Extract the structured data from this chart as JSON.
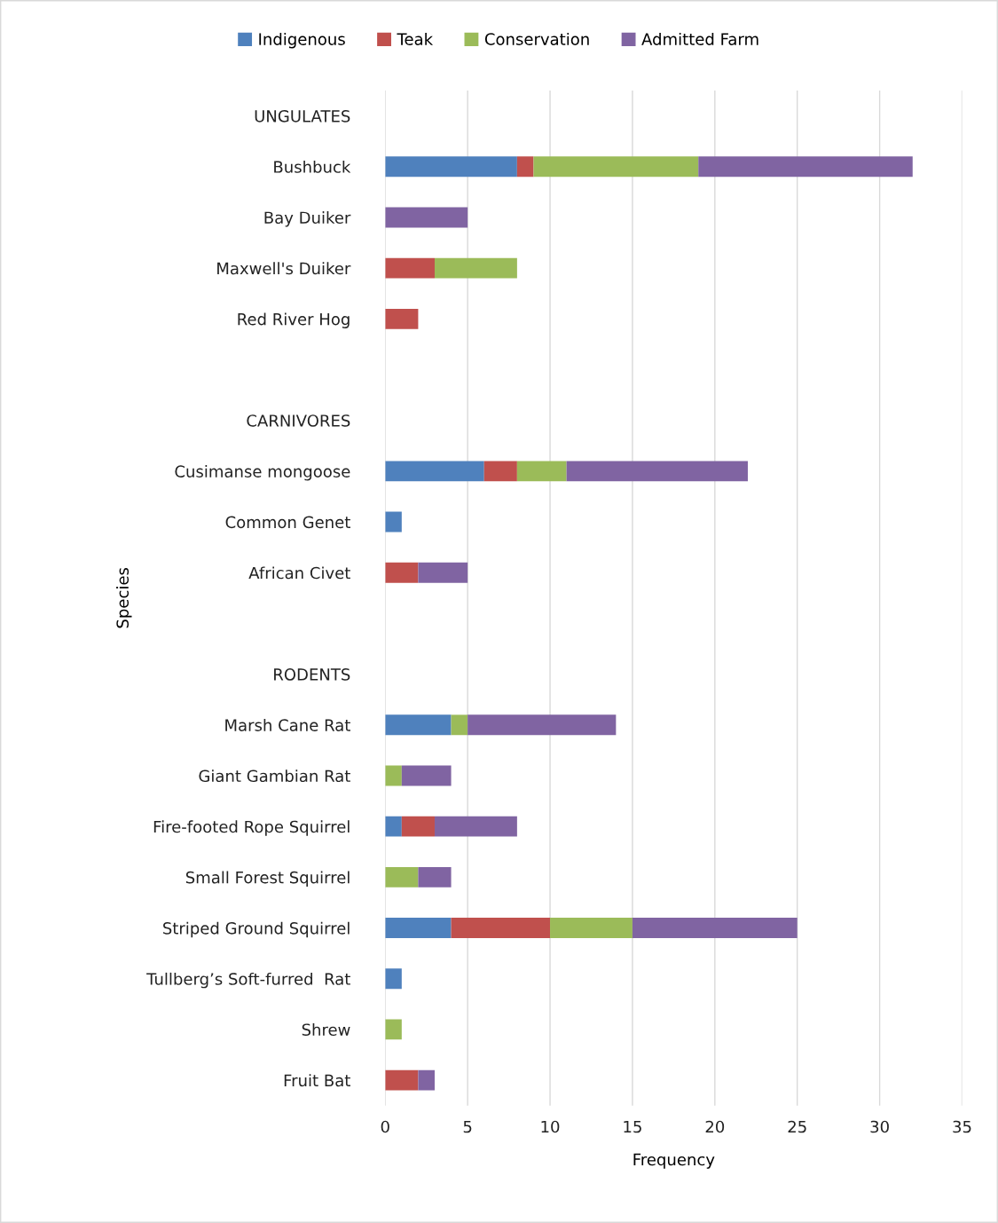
{
  "chart_data": {
    "type": "bar",
    "orientation": "horizontal",
    "stacked": true,
    "categories": [
      "UNGULATES",
      "Bushbuck",
      "Bay Duiker",
      "Maxwell's Duiker",
      "Red River Hog",
      null,
      "CARNIVORES",
      "Cusimanse mongoose",
      "Common Genet",
      "African Civet",
      null,
      "RODENTS",
      "Marsh Cane Rat",
      "Giant Gambian Rat",
      "Fire-footed Rope Squirrel",
      "Small Forest Squirrel",
      "Striped Ground Squirrel",
      "Tullberg’s Soft-furred  Rat",
      "Shrew",
      "Fruit Bat"
    ],
    "series": [
      {
        "name": "Indigenous",
        "color": "#4f81bd",
        "values": [
          null,
          8,
          0,
          0,
          0,
          null,
          null,
          6,
          1,
          0,
          null,
          null,
          4,
          0,
          1,
          0,
          4,
          1,
          0,
          0
        ]
      },
      {
        "name": "Teak",
        "color": "#c0504d",
        "values": [
          null,
          1,
          0,
          3,
          2,
          null,
          null,
          2,
          0,
          2,
          null,
          null,
          0,
          0,
          2,
          0,
          6,
          0,
          0,
          2
        ]
      },
      {
        "name": "Conservation",
        "color": "#9bbb59",
        "values": [
          null,
          10,
          0,
          5,
          0,
          null,
          null,
          3,
          0,
          0,
          null,
          null,
          1,
          1,
          0,
          2,
          5,
          0,
          1,
          0
        ]
      },
      {
        "name": "Admitted Farm",
        "color": "#8064a2",
        "values": [
          null,
          13,
          5,
          0,
          0,
          null,
          null,
          11,
          0,
          3,
          null,
          null,
          9,
          3,
          5,
          2,
          10,
          0,
          0,
          1
        ]
      }
    ],
    "xlim": [
      0,
      35
    ],
    "xticks": [
      0,
      5,
      10,
      15,
      20,
      25,
      30,
      35
    ],
    "xlabel": "Frequency",
    "ylabel": "Species",
    "grid": "x",
    "legend": "top"
  }
}
